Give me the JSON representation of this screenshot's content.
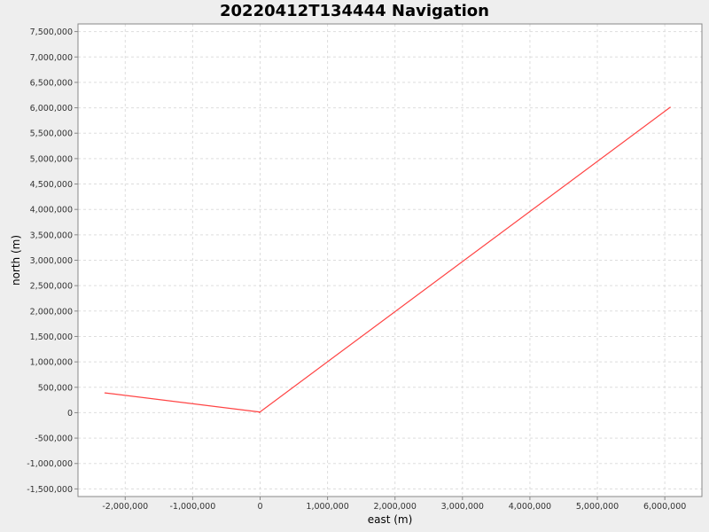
{
  "chart_data": {
    "type": "line",
    "title": "20220412T134444 Navigation",
    "xlabel": "east (m)",
    "ylabel": "north (m)",
    "xlim": [
      -2700000,
      6550000
    ],
    "ylim": [
      -1650000,
      7650000
    ],
    "grid": true,
    "legend": "none",
    "x_ticks": [
      {
        "value": -2000000,
        "label": "-2,000,000"
      },
      {
        "value": -1000000,
        "label": "-1,000,000"
      },
      {
        "value": 0,
        "label": "0"
      },
      {
        "value": 1000000,
        "label": "1,000,000"
      },
      {
        "value": 2000000,
        "label": "2,000,000"
      },
      {
        "value": 3000000,
        "label": "3,000,000"
      },
      {
        "value": 4000000,
        "label": "4,000,000"
      },
      {
        "value": 5000000,
        "label": "5,000,000"
      },
      {
        "value": 6000000,
        "label": "6,000,000"
      }
    ],
    "y_ticks": [
      {
        "value": -1500000,
        "label": "-1,500,000"
      },
      {
        "value": -1000000,
        "label": "-1,000,000"
      },
      {
        "value": -500000,
        "label": "-500,000"
      },
      {
        "value": 0,
        "label": "0"
      },
      {
        "value": 500000,
        "label": "500,000"
      },
      {
        "value": 1000000,
        "label": "1,000,000"
      },
      {
        "value": 1500000,
        "label": "1,500,000"
      },
      {
        "value": 2000000,
        "label": "2,000,000"
      },
      {
        "value": 2500000,
        "label": "2,500,000"
      },
      {
        "value": 3000000,
        "label": "3,000,000"
      },
      {
        "value": 3500000,
        "label": "3,500,000"
      },
      {
        "value": 4000000,
        "label": "4,000,000"
      },
      {
        "value": 4500000,
        "label": "4,500,000"
      },
      {
        "value": 5000000,
        "label": "5,000,000"
      },
      {
        "value": 5500000,
        "label": "5,500,000"
      },
      {
        "value": 6000000,
        "label": "6,000,000"
      },
      {
        "value": 6500000,
        "label": "6,500,000"
      },
      {
        "value": 7000000,
        "label": "7,000,000"
      },
      {
        "value": 7500000,
        "label": "7,500,000"
      }
    ],
    "series": [
      {
        "color": "#ff4444",
        "points": [
          {
            "x": -2300000,
            "y": 390000
          },
          {
            "x": -15000,
            "y": 15000
          },
          {
            "x": -10000,
            "y": 5000
          },
          {
            "x": 6080000,
            "y": 6010000
          }
        ]
      }
    ],
    "colors": {
      "background": "#eeeeee",
      "plot_background": "#ffffff",
      "grid": "#dddddd",
      "axis": "#888888"
    }
  }
}
